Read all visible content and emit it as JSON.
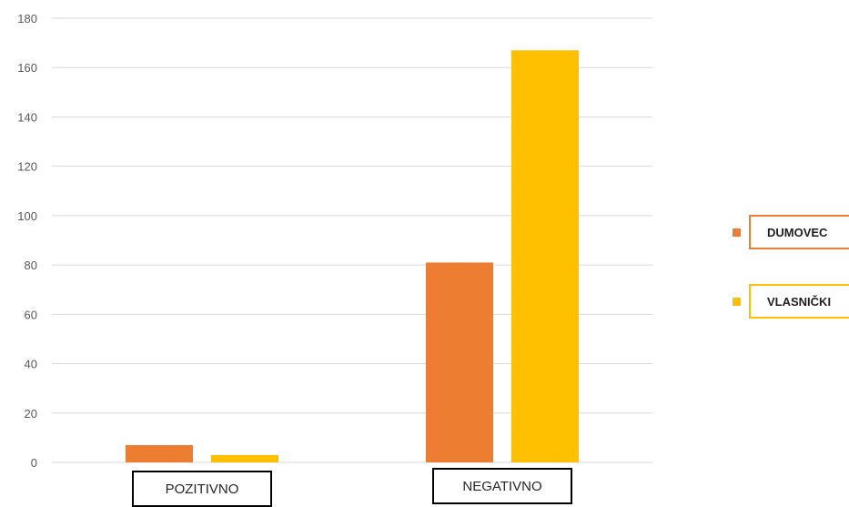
{
  "chart_data": {
    "type": "bar",
    "categories": [
      "POZITIVNO",
      "NEGATIVNO"
    ],
    "series": [
      {
        "name": "DUMOVEC",
        "values": [
          7,
          81
        ],
        "color": "#ED7D31"
      },
      {
        "name": "VLASNIČKI",
        "values": [
          3,
          167
        ],
        "color": "#FFC000"
      }
    ],
    "ylim": [
      0,
      180
    ],
    "yticks": [
      "0",
      "20",
      "40",
      "60",
      "80",
      "100",
      "120",
      "140",
      "160",
      "180"
    ],
    "grid": true,
    "legend_position": "right",
    "gridline_color": "#D9D9D9"
  }
}
